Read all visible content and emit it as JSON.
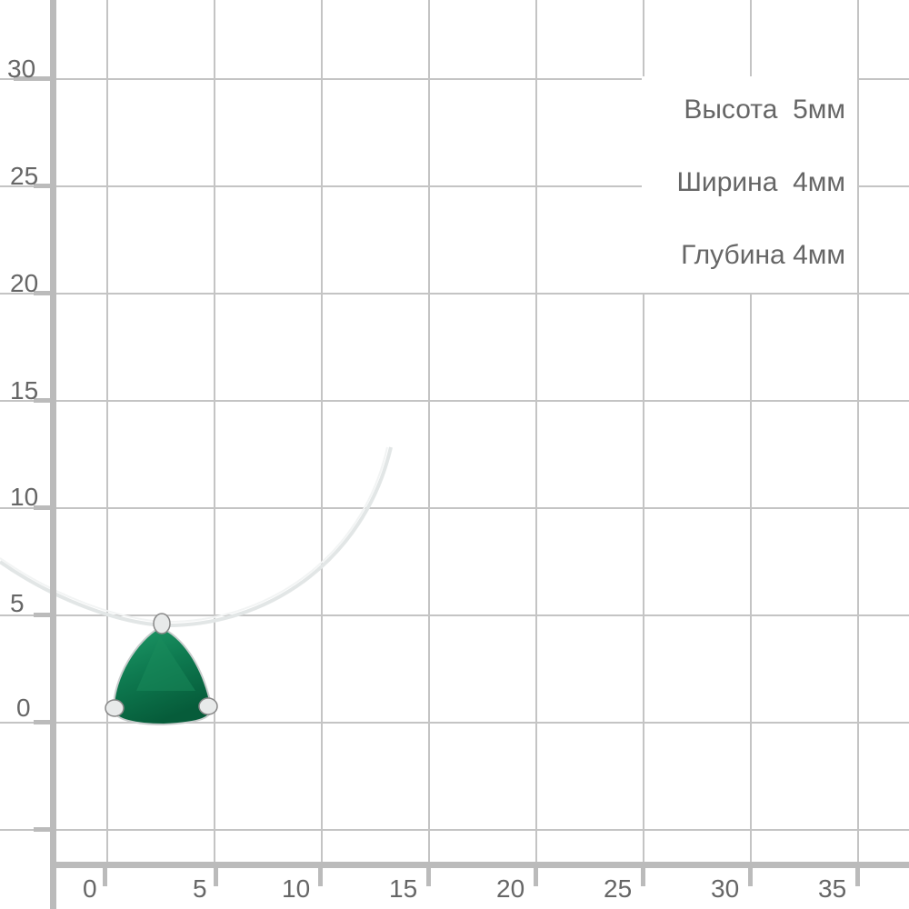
{
  "y_axis": {
    "ticks": [
      "30",
      "25",
      "20",
      "15",
      "10",
      "5",
      "0"
    ]
  },
  "x_axis": {
    "ticks": [
      "0",
      "5",
      "10",
      "15",
      "20",
      "25",
      "30",
      "35"
    ]
  },
  "specs": [
    {
      "label": "Высота",
      "value": "5мм"
    },
    {
      "label": "Ширина",
      "value": "4мм"
    },
    {
      "label": "Глубина",
      "value": "4мм"
    }
  ],
  "colors": {
    "grid": "#c4c4c4",
    "axis": "#bbbbbb",
    "text": "#666666",
    "gem": "#0e7a50"
  }
}
